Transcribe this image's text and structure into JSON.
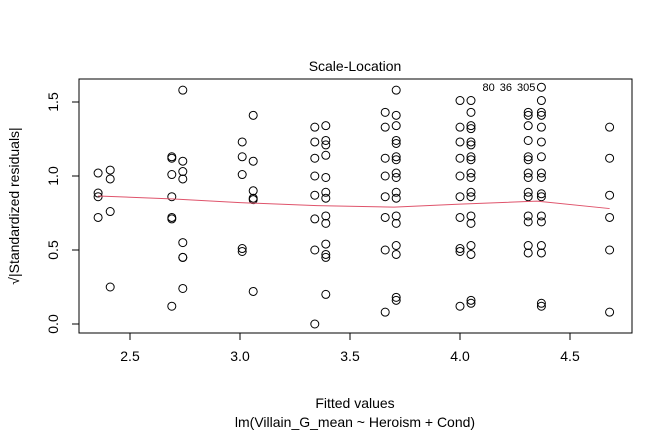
{
  "chart_data": {
    "type": "scatter",
    "title": "Scale-Location",
    "xlabel": "Fitted values",
    "subtitle": "lm(Villain_G_mean ~ Heroism + Cond)",
    "ylabel": "√|Standardized residuals|",
    "xlim": [
      2.3,
      4.75
    ],
    "ylim": [
      -0.02,
      1.65
    ],
    "xticks": [
      "2.5",
      "3.0",
      "3.5",
      "4.0",
      "4.5"
    ],
    "xtick_values": [
      2.5,
      3.0,
      3.5,
      4.0,
      4.5
    ],
    "yticks": [
      "0.0",
      "0.5",
      "1.0",
      "1.5"
    ],
    "ytick_values": [
      0,
      0.5,
      1.0,
      1.5
    ],
    "smooth_color": "#DF536B",
    "columns": [
      {
        "x": 2.355,
        "y": [
          1.02,
          0.885,
          0.86,
          0.72
        ]
      },
      {
        "x": 2.41,
        "y": [
          1.04,
          0.98,
          0.76,
          0.25
        ]
      },
      {
        "x": 2.69,
        "y": [
          1.13,
          1.12,
          1.01,
          0.86,
          0.72,
          0.71,
          0.12
        ]
      },
      {
        "x": 2.74,
        "y": [
          1.58,
          1.1,
          1.03,
          0.98,
          0.55,
          0.45,
          0.45,
          0.24
        ]
      },
      {
        "x": 3.01,
        "y": [
          1.23,
          1.13,
          1.01,
          0.51,
          0.49
        ]
      },
      {
        "x": 3.06,
        "y": [
          1.41,
          1.1,
          0.9,
          0.85,
          0.84,
          0.22
        ]
      },
      {
        "x": 3.34,
        "y": [
          1.33,
          1.23,
          1.12,
          1.0,
          0.87,
          0.71,
          0.5,
          0.0
        ]
      },
      {
        "x": 3.39,
        "y": [
          1.34,
          1.24,
          1.21,
          1.14,
          0.99,
          0.89,
          0.85,
          0.73,
          0.68,
          0.54,
          0.47,
          0.45,
          0.2
        ]
      },
      {
        "x": 3.66,
        "y": [
          1.43,
          1.33,
          1.12,
          1.0,
          0.86,
          0.72,
          0.5,
          0.08
        ]
      },
      {
        "x": 3.71,
        "y": [
          1.58,
          1.41,
          1.34,
          1.24,
          1.22,
          1.13,
          1.11,
          1.02,
          0.99,
          0.89,
          0.85,
          0.73,
          0.68,
          0.53,
          0.47,
          0.18,
          0.16
        ]
      },
      {
        "x": 4.0,
        "y": [
          1.51,
          1.33,
          1.23,
          1.12,
          1.0,
          0.86,
          0.72,
          0.51,
          0.49,
          0.12
        ]
      },
      {
        "x": 4.05,
        "y": [
          1.51,
          1.43,
          1.34,
          1.32,
          1.23,
          1.21,
          1.13,
          1.11,
          1.02,
          0.99,
          0.89,
          0.86,
          0.73,
          0.68,
          0.53,
          0.47,
          0.16,
          0.14
        ]
      },
      {
        "x": 4.31,
        "y": [
          1.43,
          1.41,
          1.34,
          1.24,
          1.13,
          1.11,
          1.02,
          0.99,
          0.89,
          0.86,
          0.73,
          0.69,
          0.53,
          0.48
        ]
      },
      {
        "x": 4.37,
        "y": [
          1.6,
          1.51,
          1.43,
          1.41,
          1.33,
          1.23,
          1.13,
          1.02,
          0.99,
          0.88,
          0.86,
          0.73,
          0.69,
          0.53,
          0.48,
          0.14,
          0.12
        ]
      },
      {
        "x": 4.68,
        "y": [
          1.33,
          1.12,
          0.87,
          0.72,
          0.5,
          0.08
        ]
      }
    ],
    "smooth": [
      [
        2.355,
        0.865
      ],
      [
        2.7,
        0.845
      ],
      [
        3.0,
        0.82
      ],
      [
        3.35,
        0.8
      ],
      [
        3.7,
        0.79
      ],
      [
        4.0,
        0.81
      ],
      [
        4.35,
        0.83
      ],
      [
        4.68,
        0.78
      ]
    ],
    "annotations": [
      {
        "x": 4.37,
        "y": 1.6,
        "labels": [
          "305",
          "36",
          "80"
        ]
      }
    ]
  }
}
